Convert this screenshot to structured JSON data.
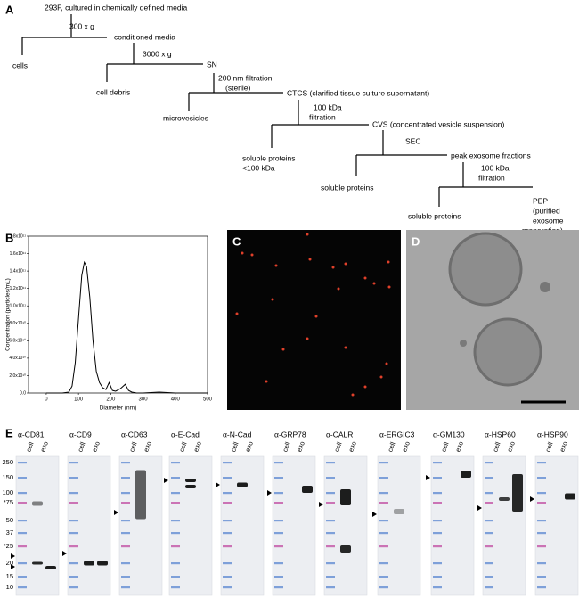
{
  "panel_a": {
    "label": "A",
    "flow": [
      "293F, cultured in chemically defined media",
      "300 x g",
      "conditioned media",
      "cells",
      "3000 x g",
      "SN",
      "cell debris",
      "200 nm filtration",
      "(sterile)",
      "CTCS (clarified tissue culture supernatant)",
      "microvesicles",
      "100 kDa",
      "filtration",
      "CVS (concentrated vesicle suspension)",
      "soluble proteins",
      "<100 kDa",
      "SEC",
      "peak exosome fractions",
      "soluble proteins",
      "100 kDa",
      "filtration",
      "PEP",
      "(purified",
      "exosome",
      "preparation)",
      "soluble proteins"
    ]
  },
  "panel_b": {
    "label": "B",
    "chart_data": {
      "type": "line",
      "xlabel": "Diameter (nm)",
      "ylabel": "Concentration (particles/mL)",
      "color": "#000000",
      "x": [
        0,
        50,
        70,
        80,
        90,
        100,
        110,
        118,
        125,
        135,
        145,
        155,
        165,
        175,
        185,
        195,
        205,
        215,
        230,
        245,
        255,
        265,
        280,
        300,
        350,
        400,
        500
      ],
      "values": [
        0,
        0,
        1000000000,
        8000000000,
        35000000000,
        85000000000,
        135000000000,
        150000000000,
        145000000000,
        110000000000,
        60000000000,
        25000000000,
        12000000000,
        6000000000,
        4000000000,
        12000000000,
        3000000000,
        2000000000,
        5000000000,
        10000000000,
        3000000000,
        1000000000,
        0,
        0,
        1000000000,
        0,
        0
      ],
      "xlim": [
        -55,
        500
      ],
      "ylim": [
        0,
        180000000000
      ],
      "xticks": [
        0,
        100,
        200,
        300,
        400,
        500
      ],
      "yticks": [
        {
          "value": 0,
          "label": "0.0"
        },
        {
          "value": 20000000000,
          "label": "2.0x10¹⁰"
        },
        {
          "value": 40000000000,
          "label": "4.0x10¹⁰"
        },
        {
          "value": 60000000000,
          "label": "6.0x10¹⁰"
        },
        {
          "value": 80000000000,
          "label": "8.0x10¹⁰"
        },
        {
          "value": 100000000000,
          "label": "1.0x10¹¹"
        },
        {
          "value": 120000000000,
          "label": "1.2x10¹¹"
        },
        {
          "value": 140000000000,
          "label": "1.4x10¹¹"
        },
        {
          "value": 160000000000,
          "label": "1.6x10¹¹"
        },
        {
          "value": 180000000000,
          "label": "1.8x10¹¹"
        }
      ]
    }
  },
  "panel_c": {
    "label": "C"
  },
  "panel_d": {
    "label": "D"
  },
  "panel_e": {
    "label": "E",
    "markers": [
      "250",
      "150",
      "100",
      "*75",
      "50",
      "37",
      "*25",
      "20",
      "15",
      "10"
    ],
    "lanes": [
      "cell",
      "exo"
    ],
    "antibodies": [
      "α-CD81",
      "α-CD9",
      "α-CD63",
      "α-E-Cad",
      "α-N-Cad",
      "α-GRP78",
      "α-CALR",
      "α-ERGIC3",
      "α-GM130",
      "α-HSP60",
      "α-HSP90"
    ]
  }
}
